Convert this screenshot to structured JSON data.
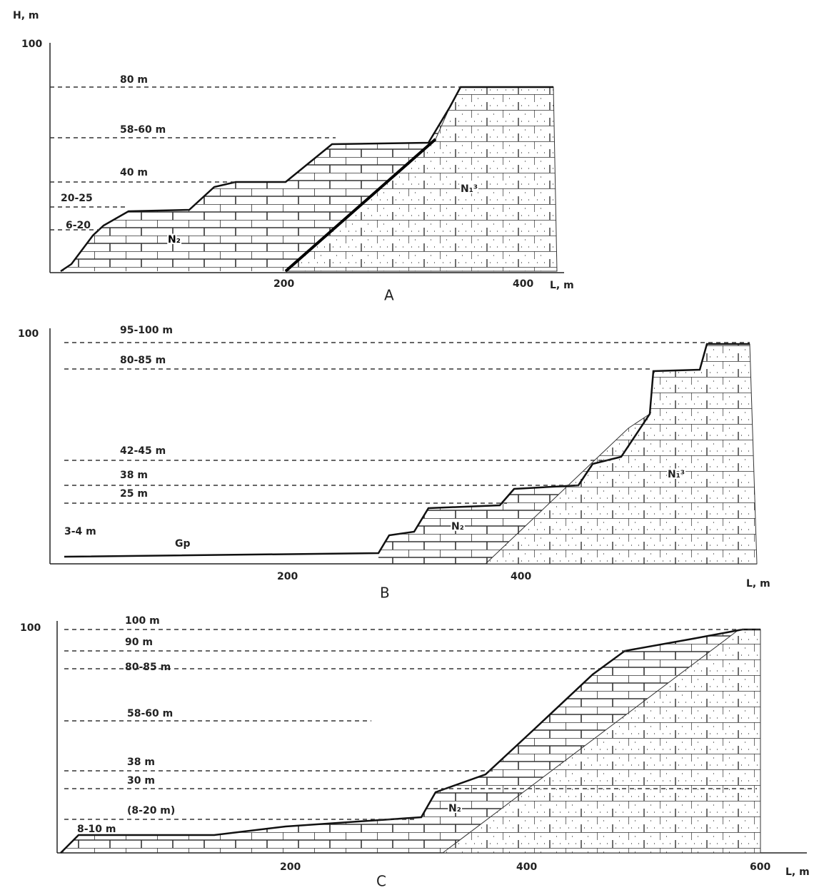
{
  "axis_label_h": "H, m",
  "panels": [
    {
      "label": "A",
      "y_tick": "100",
      "x_ticks": [
        "200",
        "400"
      ],
      "x_label": "L, m",
      "levels": [
        "80 m",
        "58-60 m",
        "40 m",
        "20-25",
        "6-20"
      ],
      "units": [
        "N₂",
        "N₁³"
      ]
    },
    {
      "label": "B",
      "y_tick": "100",
      "x_ticks": [
        "200",
        "400"
      ],
      "x_label": "L, m",
      "levels": [
        "95-100 m",
        "80-85 m",
        "42-45 m",
        "38 m",
        "25 m",
        "3-4 m"
      ],
      "units": [
        "Gp",
        "N₂",
        "N₁³"
      ]
    },
    {
      "label": "C",
      "y_tick": "100",
      "x_ticks": [
        "200",
        "400",
        "600"
      ],
      "x_label": "L, m",
      "levels": [
        "100 m",
        "90 m",
        "80-85 m",
        "58-60 m",
        "38 m",
        "30 m",
        "(8-20 m)",
        "8-10 m"
      ],
      "units": [
        "N₂"
      ]
    }
  ]
}
